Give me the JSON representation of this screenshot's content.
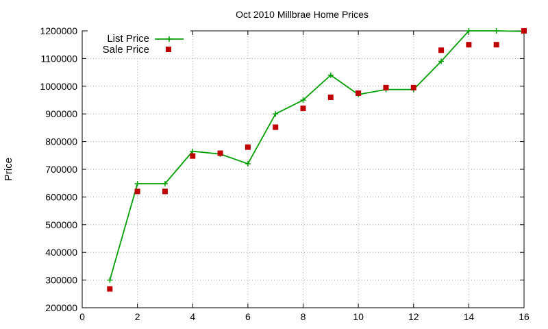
{
  "chart_data": {
    "type": "line",
    "title": "Oct 2010 Millbrae Home Prices",
    "xlabel": "",
    "ylabel": "Price",
    "xlim": [
      0,
      16
    ],
    "ylim": [
      200000,
      1200000
    ],
    "xticks": [
      0,
      2,
      4,
      6,
      8,
      10,
      12,
      14,
      16
    ],
    "yticks": [
      200000,
      300000,
      400000,
      500000,
      600000,
      700000,
      800000,
      900000,
      1000000,
      1100000,
      1200000
    ],
    "grid": true,
    "legend_position": "top-left",
    "series": [
      {
        "name": "List Price",
        "style": "line+points",
        "color": "#00a000",
        "marker": "plus",
        "x": [
          1,
          2,
          3,
          4,
          5,
          6,
          7,
          8,
          9,
          10,
          11,
          12,
          13,
          14,
          15,
          16
        ],
        "values": [
          300000,
          648000,
          648000,
          765000,
          755000,
          720000,
          900000,
          950000,
          1040000,
          970000,
          988000,
          988000,
          1090000,
          1200000,
          1200000,
          1198000
        ]
      },
      {
        "name": "Sale Price",
        "style": "points",
        "color": "#c00000",
        "marker": "square",
        "x": [
          1,
          2,
          3,
          4,
          5,
          6,
          7,
          8,
          9,
          10,
          11,
          12,
          13,
          14,
          15,
          16
        ],
        "values": [
          268000,
          620000,
          620000,
          748000,
          758000,
          780000,
          852000,
          920000,
          960000,
          975000,
          995000,
          995000,
          1130000,
          1150000,
          1150000,
          1200000
        ]
      }
    ]
  }
}
